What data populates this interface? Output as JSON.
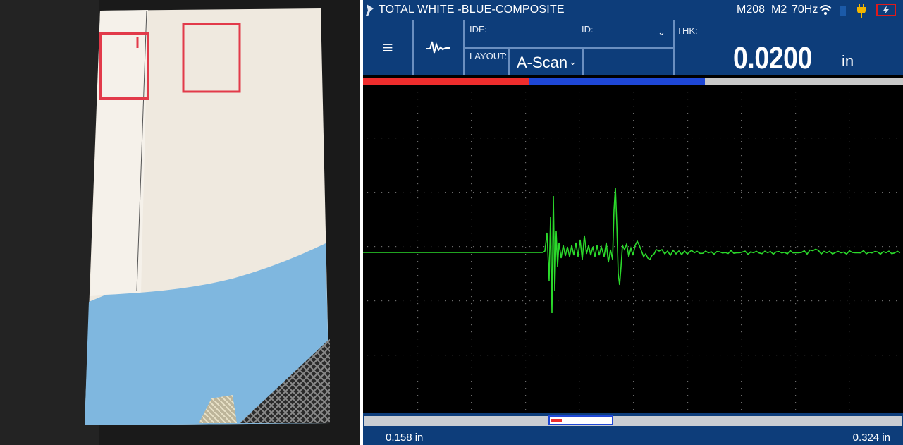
{
  "header": {
    "title": "TOTAL WHITE -BLUE-COMPOSITE",
    "material": "M208",
    "mode": "M2",
    "prf": "70Hz",
    "icons": [
      "probe-icon",
      "wifi-icon",
      "battery-icon",
      "plug-icon",
      "power-icon"
    ]
  },
  "toolbar": {
    "menu_icon": "≡",
    "idf_label": "IDF:",
    "id_label": "ID:",
    "layout_label": "LAYOUT:",
    "layout_value": "A-Scan",
    "thk_label": "THK:",
    "thk_value": "0.0200",
    "thk_unit": "in"
  },
  "gates": {
    "red_fraction": 0.308,
    "blue_end_fraction": 0.633
  },
  "range": {
    "start": "0.158 in",
    "end": "0.324 in"
  },
  "colors": {
    "header_bg": "#0d3d7a",
    "gate_red": "#ee2d2d",
    "gate_blue": "#1e47d6",
    "signal": "#2bd92b"
  }
}
